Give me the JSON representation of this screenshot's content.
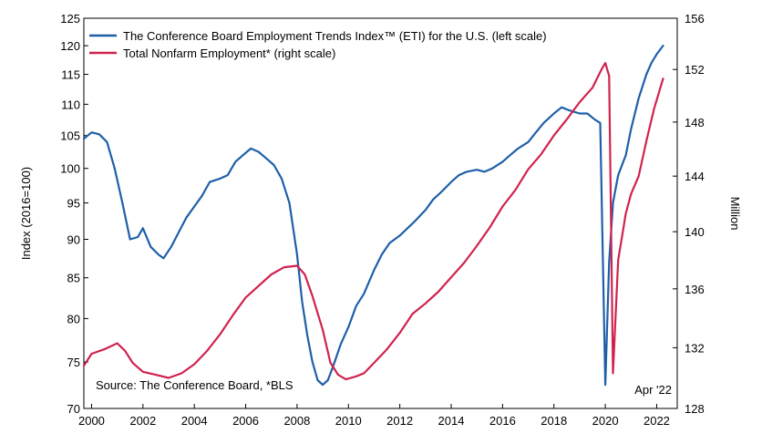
{
  "chart_data": {
    "type": "line",
    "legend_position": "top-left",
    "grid": false,
    "ylabel_left": "Index (2016=100)",
    "ylabel_right": "Million",
    "note": "Source: The Conference Board, *BLS",
    "date_label": "Apr '22",
    "x_ticks": [
      "2000",
      "2002",
      "2004",
      "2006",
      "2008",
      "2010",
      "2012",
      "2014",
      "2016",
      "2018",
      "2020",
      "2022"
    ],
    "y_left_ticks": [
      "125",
      "120",
      "115",
      "110",
      "105",
      "100",
      "95",
      "90",
      "85",
      "80",
      "75",
      "70"
    ],
    "y_right_ticks": [
      "156",
      "152",
      "148",
      "144",
      "140",
      "136",
      "132",
      "128"
    ],
    "y_left_range": [
      70,
      125
    ],
    "y_right_range": [
      128,
      156
    ],
    "x_range": [
      1999.7,
      2022.8
    ],
    "series": [
      {
        "name": "The Conference Board Employment Trends Index™ (ETI) for the U.S. (left scale)",
        "axis": "left",
        "color": "#1f5fa8",
        "x": [
          1999.7,
          2000.0,
          2000.3,
          2000.6,
          2000.9,
          2001.2,
          2001.5,
          2001.8,
          2002.0,
          2002.3,
          2002.6,
          2002.8,
          2003.1,
          2003.4,
          2003.7,
          2004.0,
          2004.3,
          2004.6,
          2005.0,
          2005.3,
          2005.6,
          2005.9,
          2006.2,
          2006.5,
          2006.8,
          2007.1,
          2007.4,
          2007.7,
          2008.0,
          2008.2,
          2008.4,
          2008.6,
          2008.8,
          2009.0,
          2009.2,
          2009.4,
          2009.7,
          2010.0,
          2010.3,
          2010.6,
          2011.0,
          2011.3,
          2011.6,
          2012.0,
          2012.3,
          2012.6,
          2013.0,
          2013.3,
          2013.6,
          2014.0,
          2014.3,
          2014.6,
          2015.0,
          2015.3,
          2015.6,
          2016.0,
          2016.3,
          2016.6,
          2017.0,
          2017.3,
          2017.6,
          2018.0,
          2018.3,
          2018.6,
          2019.0,
          2019.3,
          2019.6,
          2019.8,
          2020.0,
          2020.15,
          2020.3,
          2020.5,
          2020.8,
          2021.0,
          2021.3,
          2021.6,
          2021.8,
          2022.0,
          2022.25
        ],
        "values": [
          104.5,
          105.5,
          105.2,
          104.0,
          100.0,
          95.0,
          90.0,
          90.3,
          91.5,
          89.0,
          88.0,
          87.5,
          89.0,
          91.0,
          93.0,
          94.5,
          96.0,
          98.0,
          98.5,
          99.0,
          101.0,
          102.0,
          103.0,
          102.5,
          101.5,
          100.5,
          98.5,
          95.0,
          88.0,
          82.0,
          78.0,
          75.0,
          73.0,
          72.5,
          73.0,
          74.5,
          77.0,
          79.0,
          81.5,
          83.0,
          86.0,
          88.0,
          89.5,
          90.5,
          91.5,
          92.5,
          94.0,
          95.5,
          96.5,
          98.0,
          99.0,
          99.5,
          99.8,
          99.5,
          100.0,
          101.0,
          102.0,
          103.0,
          104.0,
          105.5,
          107.0,
          108.5,
          109.5,
          109.0,
          108.5,
          108.5,
          107.5,
          107.0,
          72.5,
          87.0,
          95.0,
          99.0,
          102.0,
          106.0,
          111.0,
          115.0,
          117.0,
          118.5,
          120.0
        ]
      },
      {
        "name": "Total Nonfarm Employment* (right scale)",
        "axis": "right",
        "color": "#d0234e",
        "x": [
          1999.7,
          2000.0,
          2000.5,
          2001.0,
          2001.3,
          2001.6,
          2002.0,
          2002.5,
          2003.0,
          2003.5,
          2004.0,
          2004.5,
          2005.0,
          2005.5,
          2006.0,
          2006.5,
          2007.0,
          2007.5,
          2008.0,
          2008.3,
          2008.6,
          2009.0,
          2009.3,
          2009.6,
          2009.9,
          2010.3,
          2010.6,
          2011.0,
          2011.5,
          2012.0,
          2012.5,
          2013.0,
          2013.5,
          2014.0,
          2014.5,
          2015.0,
          2015.5,
          2016.0,
          2016.5,
          2017.0,
          2017.5,
          2018.0,
          2018.5,
          2019.0,
          2019.5,
          2019.85,
          2020.0,
          2020.15,
          2020.3,
          2020.5,
          2020.8,
          2021.0,
          2021.3,
          2021.6,
          2021.9,
          2022.25
        ],
        "values": [
          130.8,
          131.6,
          131.9,
          132.3,
          131.8,
          131.0,
          130.4,
          130.2,
          130.0,
          130.3,
          130.9,
          131.8,
          132.9,
          134.2,
          135.4,
          136.2,
          137.0,
          137.5,
          137.6,
          137.0,
          135.5,
          133.2,
          131.0,
          130.2,
          129.9,
          130.1,
          130.3,
          131.0,
          131.9,
          133.0,
          134.3,
          135.0,
          135.8,
          136.8,
          137.8,
          139.0,
          140.3,
          141.8,
          143.0,
          144.5,
          145.6,
          147.0,
          148.2,
          149.5,
          150.6,
          152.0,
          152.5,
          151.5,
          130.3,
          138.0,
          141.3,
          142.7,
          144.0,
          146.6,
          149.0,
          151.3
        ]
      }
    ]
  }
}
